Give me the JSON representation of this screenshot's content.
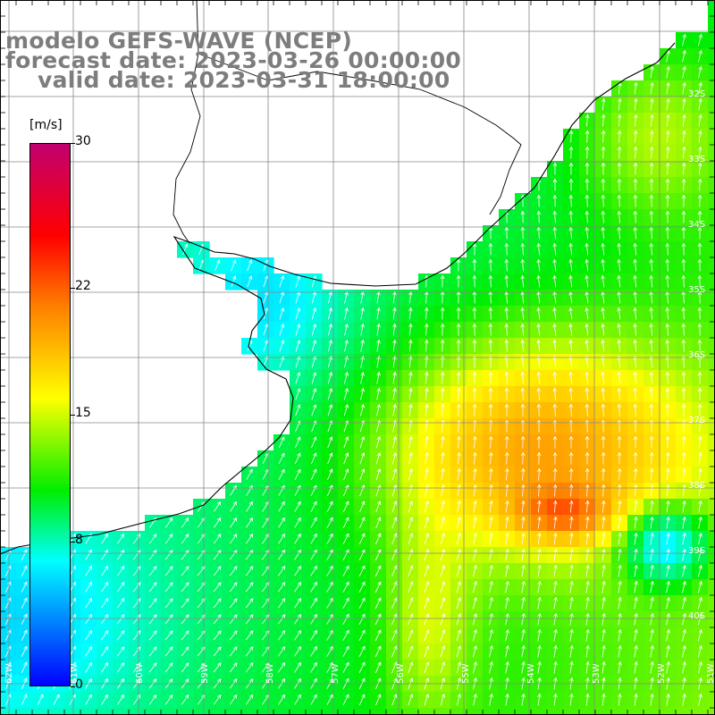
{
  "header": {
    "model": "modelo GEFS-WAVE (NCEP)",
    "forecast": "forecast date: 2023-03-26 00:00:00",
    "valid": "valid date: 2023-03-31 18:00:00"
  },
  "colorbar": {
    "units": "[m/s]",
    "ticks": [
      "30",
      "22",
      "15",
      "8",
      "0"
    ],
    "tick_values": [
      30,
      22,
      15,
      8,
      0
    ],
    "min": 0,
    "max": 30,
    "colors": [
      "#0000ff",
      "#00ffff",
      "#00ee00",
      "#ffff00",
      "#ff7f00",
      "#ff0000",
      "#c2006f"
    ]
  },
  "map": {
    "lat_labels": [
      "32S",
      "33S",
      "34S",
      "35S",
      "36S",
      "37S",
      "38S",
      "39S",
      "40S"
    ],
    "lon_labels": [
      "62W",
      "61W",
      "60W",
      "59W",
      "58W",
      "57W",
      "56W",
      "55W",
      "54W",
      "53W",
      "52W",
      "51W"
    ],
    "lat_range": [
      -41.5,
      -30.5
    ],
    "lon_range": [
      -62.5,
      -51.5
    ],
    "land_color": "#ffffff",
    "grid_color": "#888888",
    "coast_color": "#000000",
    "arrow_color": "#ffffff"
  }
}
